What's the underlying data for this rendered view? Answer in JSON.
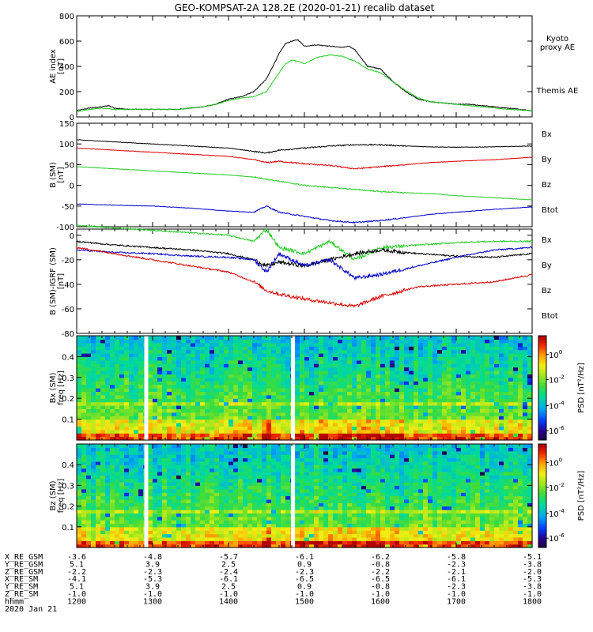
{
  "title": "GEO-KOMPSAT-2A 128.2E (2020-01-21) recalib dataset",
  "colors": {
    "black": "#000000",
    "green": "#22cc22",
    "red": "#dd0000",
    "blue": "#0000cc",
    "kyoto": "#22cc22"
  },
  "chart_data": [
    {
      "type": "line",
      "panel": "ae",
      "ylabel": [
        "AE index",
        "[nT]"
      ],
      "ylim": [
        0,
        800
      ],
      "yticks": [
        "0",
        "200",
        "400",
        "600",
        "800"
      ],
      "ytick_values": [
        0,
        200,
        400,
        600,
        800
      ],
      "x_range_hhmm": [
        1200,
        1800
      ],
      "legend": [
        {
          "name": "Kyoto proxy AE",
          "lines": [
            "Kyoto",
            "proxy AE"
          ],
          "color": "#22cc22"
        },
        {
          "name": "Themis AE",
          "lines": [
            "Themis AE"
          ],
          "color": "#000000"
        }
      ],
      "series": [
        {
          "name": "Themis AE",
          "color": "#000000",
          "x": [
            0,
            10,
            20,
            25,
            30,
            40,
            60,
            80,
            90,
            100,
            110,
            120,
            130,
            140,
            150,
            160,
            165,
            170,
            175,
            180,
            190,
            200,
            210,
            215,
            220,
            230,
            240,
            250,
            260,
            270,
            280,
            290,
            300,
            310,
            320,
            330,
            340,
            350,
            360
          ],
          "y": [
            50,
            70,
            80,
            90,
            70,
            60,
            60,
            60,
            70,
            80,
            100,
            140,
            160,
            200,
            300,
            500,
            580,
            600,
            610,
            560,
            570,
            560,
            550,
            560,
            530,
            400,
            380,
            280,
            200,
            140,
            120,
            110,
            100,
            100,
            90,
            80,
            70,
            60,
            50
          ]
        },
        {
          "name": "Kyoto proxy AE",
          "color": "#22cc22",
          "x": [
            0,
            10,
            20,
            30,
            40,
            60,
            80,
            90,
            100,
            110,
            120,
            130,
            140,
            150,
            160,
            165,
            170,
            175,
            180,
            190,
            200,
            210,
            215,
            220,
            230,
            240,
            250,
            260,
            270,
            280,
            290,
            300,
            310,
            320,
            330,
            340,
            350,
            360
          ],
          "y": [
            40,
            60,
            70,
            60,
            60,
            60,
            60,
            70,
            80,
            100,
            130,
            150,
            160,
            200,
            350,
            420,
            450,
            440,
            420,
            470,
            490,
            480,
            460,
            440,
            380,
            350,
            280,
            210,
            150,
            120,
            110,
            100,
            90,
            80,
            70,
            60,
            55,
            50
          ]
        }
      ]
    },
    {
      "type": "line",
      "panel": "bsm",
      "ylabel": [
        "B (SM)",
        "[nT]"
      ],
      "ylim": [
        -100,
        150
      ],
      "yticks": [
        "-100",
        "-50",
        "0",
        "50",
        "100",
        "150"
      ],
      "ytick_values": [
        -100,
        -50,
        0,
        50,
        100,
        150
      ],
      "legend": [
        {
          "name": "Bx",
          "color": "#0000cc"
        },
        {
          "name": "By",
          "color": "#22cc22"
        },
        {
          "name": "Bz",
          "color": "#dd0000"
        },
        {
          "name": "Btot",
          "color": "#000000"
        }
      ],
      "series": [
        {
          "name": "Btot",
          "color": "#000000",
          "x": [
            0,
            30,
            60,
            90,
            120,
            140,
            150,
            160,
            180,
            200,
            220,
            240,
            260,
            280,
            300,
            330,
            360
          ],
          "y": [
            110,
            105,
            100,
            95,
            90,
            82,
            78,
            85,
            90,
            95,
            98,
            98,
            95,
            93,
            92,
            93,
            95
          ]
        },
        {
          "name": "Bz",
          "color": "#dd0000",
          "x": [
            0,
            30,
            60,
            90,
            120,
            140,
            150,
            160,
            180,
            200,
            220,
            240,
            260,
            280,
            300,
            330,
            360
          ],
          "y": [
            90,
            85,
            80,
            75,
            70,
            62,
            55,
            58,
            52,
            48,
            40,
            45,
            50,
            55,
            58,
            62,
            68
          ]
        },
        {
          "name": "By",
          "color": "#22cc22",
          "x": [
            0,
            30,
            60,
            90,
            120,
            140,
            150,
            160,
            180,
            200,
            220,
            240,
            260,
            280,
            300,
            330,
            360
          ],
          "y": [
            45,
            40,
            35,
            30,
            25,
            20,
            15,
            10,
            0,
            -5,
            -10,
            -15,
            -18,
            -20,
            -25,
            -30,
            -35
          ]
        },
        {
          "name": "Bx",
          "color": "#0000cc",
          "x": [
            0,
            30,
            60,
            90,
            120,
            140,
            150,
            160,
            180,
            200,
            220,
            240,
            260,
            280,
            300,
            330,
            360
          ],
          "y": [
            -45,
            -48,
            -50,
            -55,
            -62,
            -65,
            -50,
            -65,
            -75,
            -85,
            -90,
            -85,
            -78,
            -70,
            -65,
            -58,
            -52
          ]
        }
      ]
    },
    {
      "type": "line",
      "panel": "bdiff",
      "ylabel": [
        "B (SM)-IGRF (SM)",
        "[nT]"
      ],
      "ylim": [
        -80,
        5
      ],
      "yticks": [
        "-80",
        "-60",
        "-40",
        "-20",
        "0"
      ],
      "ytick_values": [
        -80,
        -60,
        -40,
        -20,
        0
      ],
      "legend": [
        {
          "name": "Bx",
          "color": "#0000cc"
        },
        {
          "name": "By",
          "color": "#22cc22"
        },
        {
          "name": "Bz",
          "color": "#dd0000"
        },
        {
          "name": "Btot",
          "color": "#000000"
        }
      ],
      "series": [
        {
          "name": "By",
          "color": "#22cc22",
          "x": [
            0,
            30,
            60,
            90,
            120,
            140,
            150,
            160,
            180,
            200,
            220,
            240,
            270,
            300,
            330,
            360
          ],
          "y": [
            8,
            6,
            4,
            2,
            0,
            -5,
            5,
            -10,
            -15,
            -5,
            -20,
            -10,
            -8,
            -6,
            -5,
            -5
          ]
        },
        {
          "name": "Btot",
          "color": "#000000",
          "x": [
            0,
            30,
            60,
            90,
            120,
            140,
            150,
            160,
            180,
            200,
            220,
            240,
            270,
            300,
            330,
            360
          ],
          "y": [
            -5,
            -8,
            -10,
            -12,
            -15,
            -20,
            -25,
            -22,
            -25,
            -20,
            -15,
            -12,
            -15,
            -17,
            -18,
            -15
          ]
        },
        {
          "name": "Bx",
          "color": "#0000cc",
          "x": [
            0,
            30,
            60,
            90,
            120,
            140,
            150,
            160,
            180,
            200,
            220,
            240,
            270,
            300,
            330,
            360
          ],
          "y": [
            -12,
            -14,
            -15,
            -17,
            -18,
            -20,
            -30,
            -15,
            -25,
            -20,
            -35,
            -32,
            -25,
            -18,
            -12,
            -10
          ]
        },
        {
          "name": "Bz",
          "color": "#dd0000",
          "x": [
            0,
            30,
            60,
            90,
            120,
            140,
            150,
            160,
            180,
            200,
            220,
            240,
            270,
            300,
            330,
            360
          ],
          "y": [
            -10,
            -15,
            -20,
            -25,
            -30,
            -38,
            -45,
            -48,
            -52,
            -55,
            -58,
            -50,
            -42,
            -40,
            -38,
            -32
          ]
        }
      ]
    },
    {
      "type": "heatmap",
      "panel": "spec_bx",
      "ylabel": [
        "Bx (SM)",
        "freq [Hz]"
      ],
      "ylim": [
        0,
        0.5
      ],
      "yticks": [
        "0.1",
        "0.2",
        "0.3",
        "0.4"
      ],
      "ytick_values": [
        0.1,
        0.2,
        0.3,
        0.4
      ],
      "colorbar_label": "PSD [nT²/Hz]",
      "colorbar_ticks": [
        "10",
        "10",
        "10",
        "10"
      ],
      "colorbar_exps": [
        "0",
        "-2",
        "-4",
        "-6"
      ],
      "gaps_hhmm": [
        1255,
        1451
      ]
    },
    {
      "type": "heatmap",
      "panel": "spec_bz",
      "ylabel": [
        "Bz (SM)",
        "freq [Hz]"
      ],
      "ylim": [
        0,
        0.5
      ],
      "yticks": [
        "0.1",
        "0.2",
        "0.3",
        "0.4"
      ],
      "ytick_values": [
        0.1,
        0.2,
        0.3,
        0.4
      ],
      "colorbar_label": "PSD [nT²/Hz]",
      "colorbar_ticks": [
        "10",
        "10",
        "10",
        "10"
      ],
      "colorbar_exps": [
        "0",
        "-2",
        "-4",
        "-6"
      ],
      "gaps_hhmm": [
        1255,
        1451
      ]
    }
  ],
  "orbit": {
    "labels": [
      "X_RE_GSM",
      "Y_RE_GSM",
      "Z_RE_GSM",
      "X_RE_SM",
      "Y_RE_SM",
      "Z_RE_SM",
      "hhmm",
      "2020 Jan 21"
    ],
    "columns": [
      [
        "-3.6",
        "5.1",
        "-2.2",
        "-4.1",
        "5.1",
        "-1.0",
        "1200"
      ],
      [
        "-4.8",
        "3.9",
        "-2.3",
        "-5.3",
        "3.9",
        "-1.0",
        "1300"
      ],
      [
        "-5.7",
        "2.5",
        "-2.4",
        "-6.1",
        "2.5",
        "-1.0",
        "1400"
      ],
      [
        "-6.1",
        "0.9",
        "-2.3",
        "-6.5",
        "0.9",
        "-1.0",
        "1500"
      ],
      [
        "-6.2",
        "-0.8",
        "-2.2",
        "-6.5",
        "-0.8",
        "-1.0",
        "1600"
      ],
      [
        "-5.8",
        "-2.3",
        "-2.1",
        "-6.1",
        "-2.3",
        "-1.0",
        "1700"
      ],
      [
        "-5.1",
        "-3.8",
        "-2.0",
        "-5.3",
        "-3.8",
        "-1.0",
        "1800"
      ]
    ]
  }
}
